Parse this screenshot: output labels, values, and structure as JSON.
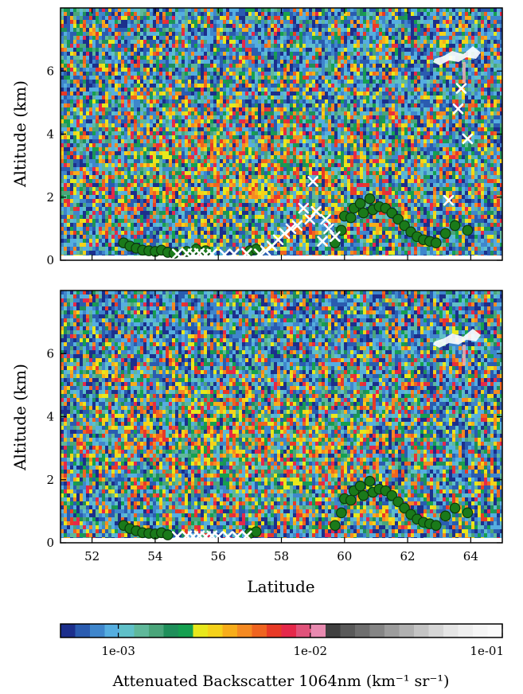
{
  "chart_data": [
    {
      "type": "scatter",
      "panel": "top",
      "xlabel": "",
      "ylabel": "Altitude (km)",
      "xlim": [
        51,
        65
      ],
      "ylim": [
        0,
        8
      ],
      "y_ticks": [
        "0",
        "2",
        "4",
        "6"
      ],
      "background": "lidar attenuated backscatter curtain (colour-mapped)",
      "series": [
        {
          "marker": "circle",
          "color": "#1a7a1a",
          "points": [
            [
              53.0,
              0.55
            ],
            [
              53.2,
              0.45
            ],
            [
              53.4,
              0.38
            ],
            [
              53.6,
              0.32
            ],
            [
              53.8,
              0.3
            ],
            [
              54.0,
              0.28
            ],
            [
              54.2,
              0.32
            ],
            [
              54.4,
              0.25
            ],
            [
              54.6,
              0.22
            ],
            [
              55.0,
              0.28
            ],
            [
              55.3,
              0.35
            ],
            [
              55.6,
              0.3
            ],
            [
              57.0,
              0.3
            ],
            [
              57.2,
              0.35
            ],
            [
              59.7,
              0.55
            ],
            [
              59.9,
              0.95
            ],
            [
              60.0,
              1.4
            ],
            [
              60.2,
              1.35
            ],
            [
              60.3,
              1.65
            ],
            [
              60.5,
              1.8
            ],
            [
              60.6,
              1.5
            ],
            [
              60.8,
              1.95
            ],
            [
              60.9,
              1.6
            ],
            [
              61.1,
              1.7
            ],
            [
              61.3,
              1.65
            ],
            [
              61.5,
              1.5
            ],
            [
              61.7,
              1.3
            ],
            [
              61.9,
              1.1
            ],
            [
              62.1,
              0.9
            ],
            [
              62.3,
              0.75
            ],
            [
              62.5,
              0.65
            ],
            [
              62.7,
              0.6
            ],
            [
              62.9,
              0.55
            ],
            [
              63.2,
              0.85
            ],
            [
              63.5,
              1.1
            ],
            [
              63.9,
              0.95
            ]
          ]
        },
        {
          "marker": "x",
          "color": "#ffffff",
          "points": [
            [
              54.7,
              0.2
            ],
            [
              55.0,
              0.22
            ],
            [
              55.2,
              0.2
            ],
            [
              55.4,
              0.22
            ],
            [
              55.6,
              0.18
            ],
            [
              55.8,
              0.2
            ],
            [
              56.2,
              0.18
            ],
            [
              56.5,
              0.2
            ],
            [
              56.9,
              0.22
            ],
            [
              57.3,
              0.2
            ],
            [
              57.5,
              0.3
            ],
            [
              57.7,
              0.45
            ],
            [
              57.9,
              0.65
            ],
            [
              58.1,
              0.85
            ],
            [
              58.3,
              1.0
            ],
            [
              58.5,
              1.1
            ],
            [
              58.7,
              1.65
            ],
            [
              58.9,
              1.3
            ],
            [
              59.0,
              2.5
            ],
            [
              59.1,
              1.55
            ],
            [
              59.3,
              0.6
            ],
            [
              59.4,
              1.3
            ],
            [
              59.5,
              1.0
            ],
            [
              59.7,
              0.75
            ],
            [
              63.3,
              1.9
            ],
            [
              63.6,
              4.8
            ],
            [
              63.7,
              5.45
            ],
            [
              63.9,
              3.85
            ]
          ]
        }
      ]
    },
    {
      "type": "scatter",
      "panel": "bottom",
      "xlabel": "Latitude",
      "ylabel": "Altitude (km)",
      "xlim": [
        51,
        65
      ],
      "ylim": [
        0,
        8
      ],
      "x_ticks": [
        "52",
        "54",
        "56",
        "58",
        "60",
        "62",
        "64"
      ],
      "y_ticks": [
        "0",
        "2",
        "4",
        "6"
      ],
      "background": "lidar attenuated backscatter curtain (colour-mapped)",
      "series": [
        {
          "marker": "circle",
          "color": "#1a7a1a",
          "points": [
            [
              53.0,
              0.55
            ],
            [
              53.2,
              0.45
            ],
            [
              53.4,
              0.38
            ],
            [
              53.6,
              0.32
            ],
            [
              53.8,
              0.3
            ],
            [
              54.0,
              0.28
            ],
            [
              54.2,
              0.32
            ],
            [
              54.4,
              0.25
            ],
            [
              57.0,
              0.3
            ],
            [
              57.2,
              0.35
            ],
            [
              59.7,
              0.55
            ],
            [
              59.9,
              0.95
            ],
            [
              60.0,
              1.4
            ],
            [
              60.2,
              1.35
            ],
            [
              60.3,
              1.65
            ],
            [
              60.5,
              1.8
            ],
            [
              60.6,
              1.5
            ],
            [
              60.8,
              1.95
            ],
            [
              60.9,
              1.6
            ],
            [
              61.1,
              1.7
            ],
            [
              61.3,
              1.65
            ],
            [
              61.5,
              1.5
            ],
            [
              61.7,
              1.3
            ],
            [
              61.9,
              1.1
            ],
            [
              62.1,
              0.9
            ],
            [
              62.3,
              0.75
            ],
            [
              62.5,
              0.65
            ],
            [
              62.7,
              0.6
            ],
            [
              62.9,
              0.55
            ],
            [
              63.2,
              0.85
            ],
            [
              63.5,
              1.1
            ],
            [
              63.9,
              0.95
            ]
          ]
        },
        {
          "marker": "x",
          "color": "#ffffff",
          "points": [
            [
              54.7,
              0.2
            ],
            [
              55.0,
              0.22
            ],
            [
              55.2,
              0.2
            ],
            [
              55.4,
              0.22
            ],
            [
              55.6,
              0.2
            ],
            [
              55.8,
              0.22
            ],
            [
              56.0,
              0.2
            ],
            [
              56.3,
              0.2
            ],
            [
              56.6,
              0.2
            ],
            [
              56.9,
              0.22
            ]
          ]
        }
      ]
    }
  ],
  "colorbar": {
    "label": "Attenuated Backscatter 1064nm (km⁻¹ sr⁻¹)",
    "ticks": [
      "1e-03",
      "1e-02",
      "1e-01"
    ],
    "scale": "log",
    "range": [
      0.0005,
      0.1
    ],
    "colors": [
      "#1c2f8c",
      "#2a5cb0",
      "#3f86cc",
      "#55aee0",
      "#5fc0c8",
      "#5fb89a",
      "#4aa57a",
      "#1f8f5a",
      "#15a050",
      "#e8e81c",
      "#f5d21a",
      "#f7ad1a",
      "#f58a22",
      "#ef6420",
      "#e83a26",
      "#e5284a",
      "#e0527a",
      "#e88ab0",
      "#404040",
      "#595959",
      "#6e6e6e",
      "#858585",
      "#9c9c9c",
      "#b0b0b0",
      "#c4c4c4",
      "#d6d6d6",
      "#e5e5e5",
      "#efefef",
      "#f6f6f6",
      "#fbfbfb"
    ]
  }
}
